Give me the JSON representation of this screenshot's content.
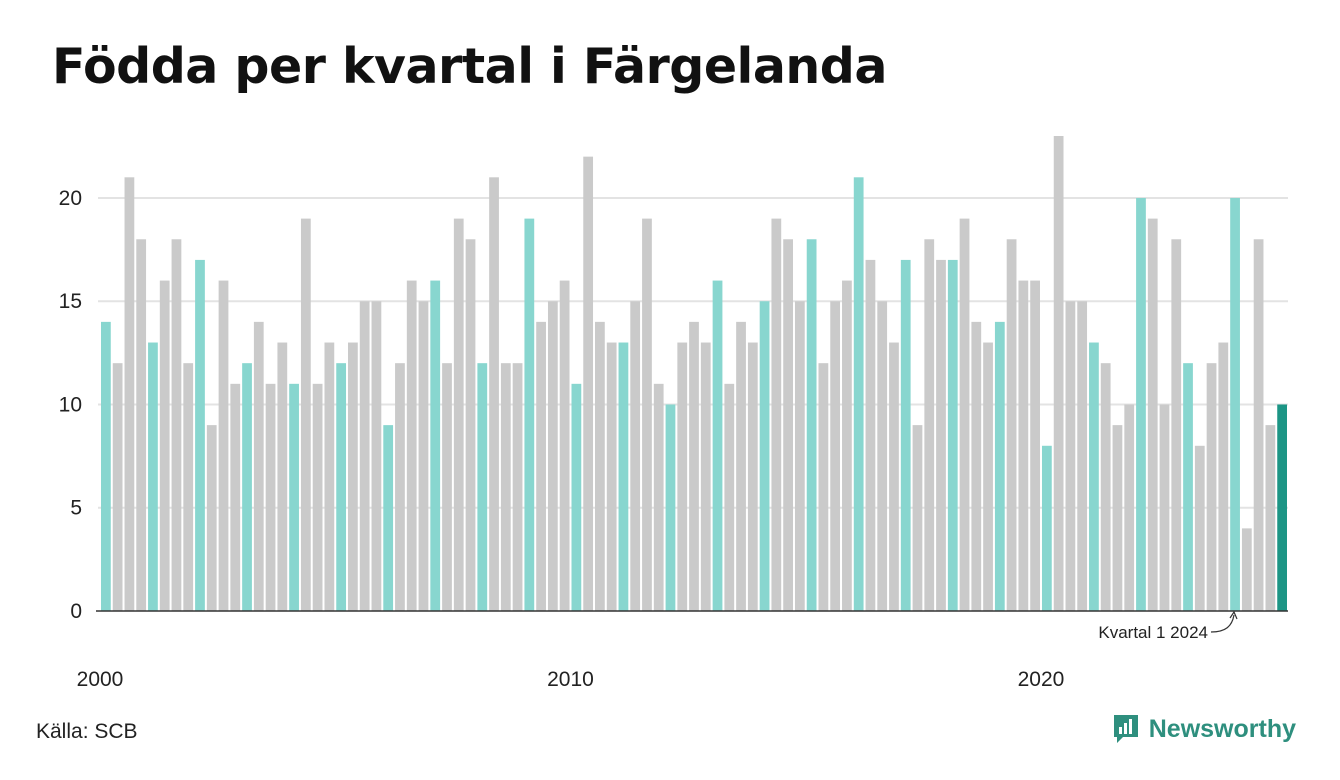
{
  "title": "Födda per kvartal i Färgelanda",
  "source": "Källa: SCB",
  "brand": {
    "name": "Newsworthy",
    "icon": "newsworthy-logo-icon"
  },
  "colors": {
    "q1": "#88d6cf",
    "other": "#cacaca",
    "latest": "#1c9585",
    "grid": "#e3e3e3",
    "axis": "#333333",
    "brand": "#2e8f7e"
  },
  "chart_data": {
    "type": "bar",
    "title": "Födda per kvartal i Färgelanda",
    "xlabel": "",
    "ylabel": "",
    "ylim": [
      0,
      23
    ],
    "yticks": [
      0,
      5,
      10,
      15,
      20
    ],
    "xtick_labels": [
      "2000",
      "2010",
      "2020"
    ],
    "start_year": 2000,
    "grid": "horizontal",
    "annotation": "Kvartal 1 2024",
    "values": [
      14,
      12,
      21,
      18,
      13,
      16,
      18,
      12,
      17,
      9,
      16,
      11,
      12,
      14,
      11,
      13,
      11,
      19,
      11,
      13,
      12,
      13,
      15,
      15,
      9,
      12,
      16,
      15,
      16,
      12,
      19,
      18,
      12,
      21,
      12,
      12,
      19,
      14,
      15,
      16,
      11,
      22,
      14,
      13,
      13,
      15,
      19,
      11,
      10,
      13,
      14,
      13,
      16,
      11,
      14,
      13,
      15,
      19,
      18,
      15,
      18,
      12,
      15,
      16,
      21,
      17,
      15,
      13,
      17,
      9,
      18,
      17,
      17,
      19,
      14,
      13,
      14,
      18,
      16,
      16,
      8,
      23,
      15,
      15,
      13,
      12,
      9,
      10,
      20,
      19,
      10,
      18,
      12,
      8,
      12,
      13,
      20,
      4,
      18,
      9,
      10
    ]
  }
}
